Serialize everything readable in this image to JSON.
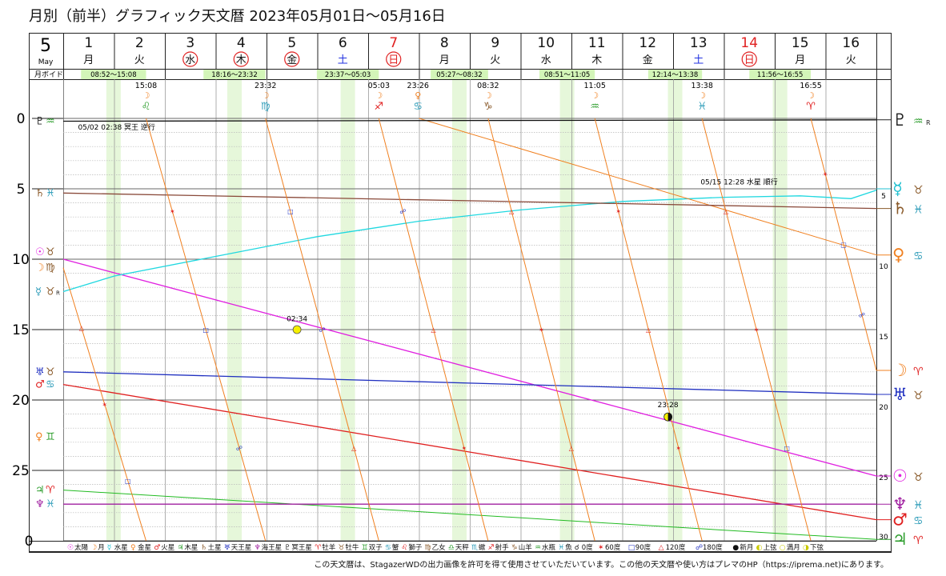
{
  "title": "月別（前半）グラフィック天文暦  2023年05月01日～05月16日",
  "month": {
    "number": "5",
    "name": "May"
  },
  "days": [
    {
      "num": "1",
      "wd": "月",
      "type": "normal"
    },
    {
      "num": "2",
      "wd": "火",
      "type": "normal"
    },
    {
      "num": "3",
      "wd": "水",
      "type": "holiday"
    },
    {
      "num": "4",
      "wd": "木",
      "type": "holiday"
    },
    {
      "num": "5",
      "wd": "金",
      "type": "holiday"
    },
    {
      "num": "6",
      "wd": "土",
      "type": "saturday"
    },
    {
      "num": "7",
      "wd": "日",
      "type": "sunday"
    },
    {
      "num": "8",
      "wd": "月",
      "type": "normal"
    },
    {
      "num": "9",
      "wd": "火",
      "type": "normal"
    },
    {
      "num": "10",
      "wd": "水",
      "type": "normal"
    },
    {
      "num": "11",
      "wd": "木",
      "type": "normal"
    },
    {
      "num": "12",
      "wd": "金",
      "type": "normal"
    },
    {
      "num": "13",
      "wd": "土",
      "type": "saturday"
    },
    {
      "num": "14",
      "wd": "日",
      "type": "sunday"
    },
    {
      "num": "15",
      "wd": "月",
      "type": "normal"
    },
    {
      "num": "16",
      "wd": "火",
      "type": "normal"
    }
  ],
  "void_label": "月ボイド",
  "voids": [
    {
      "start": 1.35,
      "end": 2.63,
      "text": "08:52～15:08"
    },
    {
      "start": 3.76,
      "end": 4.98,
      "text": "18:16～23:32"
    },
    {
      "start": 5.99,
      "end": 7.21,
      "text": "23:37～05:03"
    },
    {
      "start": 8.23,
      "end": 9.36,
      "text": "05:27～08:32"
    },
    {
      "start": 10.37,
      "end": 11.46,
      "text": "08:51～11:05"
    },
    {
      "start": 12.51,
      "end": 13.57,
      "text": "12:14～13:38"
    },
    {
      "start": 14.5,
      "end": 15.71,
      "text": "11:56～16:55"
    }
  ],
  "ingress": [
    {
      "day": 2.63,
      "time": "15:08",
      "planet": "☽",
      "sign": "♌",
      "color": "#2e9e2e"
    },
    {
      "day": 4.98,
      "time": "23:32",
      "planet": "☽",
      "sign": "♍",
      "color": "#2b9bb8"
    },
    {
      "day": 7.21,
      "time": "05:03",
      "planet": "☽",
      "sign": "♐",
      "color": "#e02020"
    },
    {
      "day": 7.98,
      "time": "23:26",
      "planet": "♀",
      "sign": "♋",
      "color": "#2b9bb8"
    },
    {
      "day": 9.36,
      "time": "08:32",
      "planet": "☽",
      "sign": "♑",
      "color": "#8a5a2a"
    },
    {
      "day": 11.46,
      "time": "11:05",
      "planet": "☽",
      "sign": "♒",
      "color": "#2e9e2e"
    },
    {
      "day": 13.57,
      "time": "13:38",
      "planet": "☽",
      "sign": "♓",
      "color": "#2b9bb8"
    },
    {
      "day": 15.71,
      "time": "16:55",
      "planet": "☽",
      "sign": "♈",
      "color": "#e02020"
    }
  ],
  "left_labels": [
    {
      "deg": 0.2,
      "items": [
        {
          "g": "♇",
          "c": "#222"
        },
        {
          "g": "♒",
          "c": "#2e9e2e"
        }
      ]
    },
    {
      "deg": 5.3,
      "items": [
        {
          "g": "♄",
          "c": "#8a5a2a"
        },
        {
          "g": "♓",
          "c": "#2b9bb8"
        }
      ]
    },
    {
      "deg": 9.5,
      "items": [
        {
          "g": "☉",
          "c": "#e020e0"
        },
        {
          "g": "♉",
          "c": "#8a5a2a"
        }
      ]
    },
    {
      "deg": 10.6,
      "items": [
        {
          "g": "☽",
          "c": "#f08020"
        },
        {
          "g": "♍",
          "c": "#8a5a2a"
        }
      ]
    },
    {
      "deg": 12.3,
      "items": [
        {
          "g": "☿",
          "c": "#2b9bb8"
        },
        {
          "g": "♉",
          "c": "#8a5a2a"
        },
        {
          "g": "R",
          "c": "#222"
        }
      ]
    },
    {
      "deg": 18.0,
      "items": [
        {
          "g": "♅",
          "c": "#2030c0"
        },
        {
          "g": "♉",
          "c": "#8a5a2a"
        }
      ]
    },
    {
      "deg": 18.9,
      "items": [
        {
          "g": "♂",
          "c": "#e02020"
        },
        {
          "g": "♋",
          "c": "#2b9bb8"
        }
      ]
    },
    {
      "deg": 22.6,
      "items": [
        {
          "g": "♀",
          "c": "#f08020"
        },
        {
          "g": "♊",
          "c": "#2e9e2e"
        }
      ]
    },
    {
      "deg": 26.4,
      "items": [
        {
          "g": "♃",
          "c": "#2e9e2e"
        },
        {
          "g": "♈",
          "c": "#e02020"
        }
      ]
    },
    {
      "deg": 27.4,
      "items": [
        {
          "g": "♆",
          "c": "#a020a0"
        },
        {
          "g": "♓",
          "c": "#2b9bb8"
        }
      ]
    }
  ],
  "right_labels": [
    {
      "deg": 0.1,
      "big": "♇",
      "bc": "#222",
      "sign": "♒",
      "sc": "#2e9e2e",
      "r": "R"
    },
    {
      "deg": 5.0,
      "big": "☿",
      "bc": "#20c0d0",
      "sign": "♉",
      "sc": "#8a5a2a",
      "r": ""
    },
    {
      "deg": 6.4,
      "big": "♄",
      "bc": "#8a5a2a",
      "sign": "♓",
      "sc": "#2b9bb8",
      "r": ""
    },
    {
      "deg": 9.7,
      "big": "♀",
      "bc": "#f08020",
      "sign": "♋",
      "sc": "#2b9bb8",
      "r": ""
    },
    {
      "deg": 17.9,
      "big": "☽",
      "bc": "#f08020",
      "sign": "♈",
      "sc": "#e02020",
      "r": ""
    },
    {
      "deg": 19.6,
      "big": "♅",
      "bc": "#2030c0",
      "sign": "♉",
      "sc": "#8a5a2a",
      "r": ""
    },
    {
      "deg": 25.4,
      "big": "☉",
      "bc": "#e020e0",
      "sign": "♉",
      "sc": "#8a5a2a",
      "r": ""
    },
    {
      "deg": 27.4,
      "big": "♆",
      "bc": "#a020a0",
      "sign": "♓",
      "sc": "#2b9bb8",
      "r": ""
    },
    {
      "deg": 28.5,
      "big": "♂",
      "bc": "#e02020",
      "sign": "♋",
      "sc": "#2b9bb8",
      "r": ""
    },
    {
      "deg": 29.9,
      "big": "♃",
      "bc": "#2e9e2e",
      "sign": "♈",
      "sc": "#e02020",
      "r": ""
    }
  ],
  "annotations": [
    {
      "day": 2.05,
      "deg": 0.8,
      "text": "05/02 02:38 冥王 逆行"
    },
    {
      "day": 14.3,
      "deg": 4.7,
      "text": "05/15 12:28 水星 順行"
    },
    {
      "day": 5.6,
      "deg": 14.4,
      "text": "02:34"
    },
    {
      "day": 12.9,
      "deg": 20.5,
      "text": "23:28"
    }
  ],
  "legend_items": [
    {
      "g": "☉",
      "c": "#e020e0",
      "t": "太陽"
    },
    {
      "g": "☽",
      "c": "#f08020",
      "t": "月"
    },
    {
      "g": "☿",
      "c": "#20c0d0",
      "t": "水星"
    },
    {
      "g": "♀",
      "c": "#f08020",
      "t": "金星"
    },
    {
      "g": "♂",
      "c": "#e02020",
      "t": "火星"
    },
    {
      "g": "♃",
      "c": "#2e9e2e",
      "t": "木星"
    },
    {
      "g": "♄",
      "c": "#8a5a2a",
      "t": "土星"
    },
    {
      "g": "♅",
      "c": "#2030c0",
      "t": "天王星"
    },
    {
      "g": "♆",
      "c": "#a020a0",
      "t": "海王星"
    },
    {
      "g": "♇",
      "c": "#222",
      "t": "冥王星"
    },
    {
      "g": "♈",
      "c": "#e02020",
      "t": "牡羊"
    },
    {
      "g": "♉",
      "c": "#8a5a2a",
      "t": "牡牛"
    },
    {
      "g": "♊",
      "c": "#2e9e2e",
      "t": "双子"
    },
    {
      "g": "♋",
      "c": "#2b9bb8",
      "t": "蟹"
    },
    {
      "g": "♌",
      "c": "#e02020",
      "t": "獅子"
    },
    {
      "g": "♍",
      "c": "#8a5a2a",
      "t": "乙女"
    },
    {
      "g": "♎",
      "c": "#2e9e2e",
      "t": "天秤"
    },
    {
      "g": "♏",
      "c": "#2b9bb8",
      "t": "蠍"
    },
    {
      "g": "♐",
      "c": "#e02020",
      "t": "射手"
    },
    {
      "g": "♑",
      "c": "#8a5a2a",
      "t": "山羊"
    },
    {
      "g": "♒",
      "c": "#2e9e2e",
      "t": "水瓶"
    },
    {
      "g": "♓",
      "c": "#2b9bb8",
      "t": "魚"
    },
    {
      "g": "☌",
      "c": "#222",
      "t": "0度"
    },
    {
      "g": "✶",
      "c": "#e02020",
      "t": "60度"
    },
    {
      "g": "□",
      "c": "#2030c0",
      "t": "90度"
    },
    {
      "g": "△",
      "c": "#e02020",
      "t": "120度"
    },
    {
      "g": "☍",
      "c": "#2030c0",
      "t": "180度"
    },
    {
      "g": "●",
      "c": "#111",
      "t": "新月"
    },
    {
      "g": "◐",
      "c": "#c9c900",
      "t": "上弦"
    },
    {
      "g": "○",
      "c": "#c9c900",
      "t": "満月"
    },
    {
      "g": "◑",
      "c": "#c9c900",
      "t": "下弦"
    }
  ],
  "credit": "この天文暦は、StagazerWDの出力画像を許可を得て使用させていただいています。この他の天文暦や使い方はプレマのHP（https://iprema.net)にあります。",
  "chart_data": {
    "type": "line",
    "title": "月別（前半）グラフィック天文暦  2023年05月01日～05月16日",
    "xlabel": "",
    "ylabel": "",
    "x_range": [
      1,
      17
    ],
    "ylim": [
      0,
      30
    ],
    "y_ticks_left": [
      0,
      5,
      10,
      15,
      20,
      25
    ],
    "y_ticks_right": [
      5,
      10,
      15,
      20,
      25,
      30
    ],
    "series": [
      {
        "name": "太陽",
        "color": "#e020e0",
        "width": 1.3,
        "points": [
          [
            1,
            10.0
          ],
          [
            17,
            25.4
          ]
        ]
      },
      {
        "name": "水星",
        "color": "#20d8e0",
        "width": 1.3,
        "points": [
          [
            1,
            12.3
          ],
          [
            2,
            11.2
          ],
          [
            4,
            9.8
          ],
          [
            6,
            8.4
          ],
          [
            8,
            7.3
          ],
          [
            10,
            6.5
          ],
          [
            12,
            5.9
          ],
          [
            14,
            5.6
          ],
          [
            15.5,
            5.5
          ],
          [
            16.5,
            5.7
          ],
          [
            17,
            5.1
          ]
        ]
      },
      {
        "name": "金星",
        "color": "#f08020",
        "width": 1.0,
        "points": [
          [
            8,
            0.0
          ],
          [
            17,
            9.7
          ]
        ]
      },
      {
        "name": "火星",
        "color": "#e02020",
        "width": 1.3,
        "points": [
          [
            1,
            18.9
          ],
          [
            17,
            28.5
          ]
        ]
      },
      {
        "name": "木星",
        "color": "#22bb22",
        "width": 1.0,
        "points": [
          [
            1,
            26.4
          ],
          [
            17,
            29.9
          ]
        ]
      },
      {
        "name": "土星",
        "color": "#8a4a3a",
        "width": 1.3,
        "points": [
          [
            1,
            5.3
          ],
          [
            17,
            6.4
          ]
        ]
      },
      {
        "name": "天王星",
        "color": "#2030c0",
        "width": 1.3,
        "points": [
          [
            1,
            18.0
          ],
          [
            17,
            19.6
          ]
        ]
      },
      {
        "name": "海王星",
        "color": "#a020a0",
        "width": 1.3,
        "points": [
          [
            1,
            27.4
          ],
          [
            17,
            27.4
          ]
        ]
      },
      {
        "name": "冥王星",
        "color": "#111111",
        "width": 1.3,
        "points": [
          [
            1,
            0.2
          ],
          [
            17,
            0.1
          ]
        ]
      },
      {
        "name": "月",
        "color": "#f08020",
        "width": 1.0,
        "segments": [
          [
            [
              1,
              10.6
            ],
            [
              2.63,
              30.0
            ]
          ],
          [
            [
              2.63,
              0.0
            ],
            [
              4.98,
              30.0
            ]
          ],
          [
            [
              4.98,
              0.0
            ],
            [
              7.21,
              30.0
            ]
          ],
          [
            [
              7.21,
              0.0
            ],
            [
              9.36,
              30.0
            ]
          ],
          [
            [
              9.36,
              0.0
            ],
            [
              11.46,
              30.0
            ]
          ],
          [
            [
              11.46,
              0.0
            ],
            [
              13.57,
              30.0
            ]
          ],
          [
            [
              13.57,
              0.0
            ],
            [
              15.71,
              30.0
            ]
          ],
          [
            [
              15.71,
              0.0
            ],
            [
              17,
              17.9
            ]
          ]
        ]
      }
    ],
    "phase_markers": [
      {
        "day": 5.6,
        "deg": 15.0,
        "phase": "満月"
      },
      {
        "day": 12.9,
        "deg": 21.2,
        "phase": "下弦"
      }
    ]
  }
}
